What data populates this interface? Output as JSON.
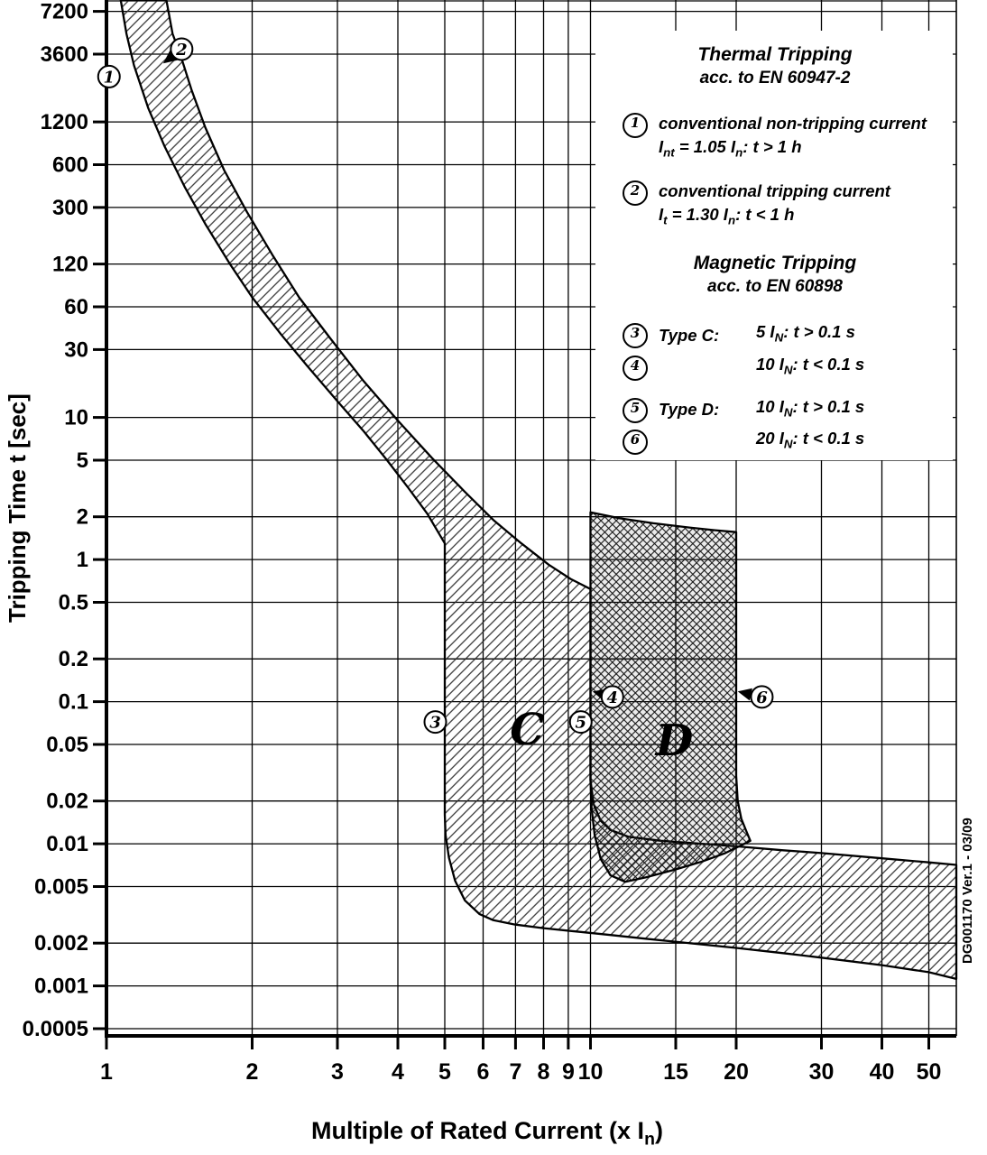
{
  "colors": {
    "ink": "#000000",
    "paper": "#ffffff"
  },
  "axes": {
    "y": {
      "label": "Tripping Time t [sec]",
      "ticks": [
        "7200",
        "3600",
        "1200",
        "600",
        "300",
        "120",
        "60",
        "30",
        "10",
        "5",
        "2",
        "1",
        "0.5",
        "0.2",
        "0.1",
        "0.05",
        "0.02",
        "0.01",
        "0.005",
        "0.002",
        "0.001",
        "0.0005"
      ]
    },
    "x": {
      "label_pre": "Multiple of Rated Current (x I",
      "label_sub": "n",
      "label_post": ")",
      "ticks": [
        "1",
        "2",
        "3",
        "4",
        "5",
        "6",
        "7",
        "8",
        "9",
        "10",
        "15",
        "20",
        "30",
        "40",
        "50"
      ]
    }
  },
  "legend": {
    "thermal": {
      "title": "Thermal Tripping",
      "subtitle": "acc. to EN 60947-2",
      "item1": {
        "num": "1",
        "desc": "conventional non-tripping current",
        "f_pre": "I",
        "f_sub1": "nt",
        "f_mid": " = 1.05 I",
        "f_sub2": "n",
        "f_post": ":  t > 1 h"
      },
      "item2": {
        "num": "2",
        "desc": "conventional tripping current",
        "f_pre": "I",
        "f_sub1": "t",
        "f_mid": " = 1.30 I",
        "f_sub2": "n",
        "f_post": ":  t < 1 h"
      }
    },
    "magnetic": {
      "title": "Magnetic Tripping",
      "subtitle": "acc. to EN 60898",
      "item3": {
        "num": "3",
        "type": "Type C:",
        "f_pre": "5 I",
        "f_sub": "N",
        "f_post": ":  t > 0.1 s"
      },
      "item4": {
        "num": "4",
        "type": "",
        "f_pre": "10 I",
        "f_sub": "N",
        "f_post": ":  t < 0.1 s"
      },
      "item5": {
        "num": "5",
        "type": "Type D:",
        "f_pre": "10 I",
        "f_sub": "N",
        "f_post": ":  t > 0.1 s"
      },
      "item6": {
        "num": "6",
        "type": "",
        "f_pre": "20 I",
        "f_sub": "N",
        "f_post": ":  t < 0.1 s"
      }
    }
  },
  "watermark": "DG001170 Ver.1 - 03/09",
  "chart_data": {
    "type": "area",
    "title": "MCB tripping characteristic, Type C and Type D",
    "xlabel": "Multiple of Rated Current (x In)",
    "ylabel": "Tripping Time t [sec]",
    "x_scale": "log",
    "y_scale": "log",
    "xlim": [
      1,
      57
    ],
    "ylim": [
      0.000445,
      8650
    ],
    "grid": true,
    "x_ticks": [
      1,
      2,
      3,
      4,
      5,
      6,
      7,
      8,
      9,
      10,
      15,
      20,
      30,
      40,
      50
    ],
    "y_ticks": [
      7200,
      3600,
      1200,
      600,
      300,
      120,
      60,
      30,
      10,
      5,
      2,
      1,
      0.5,
      0.2,
      0.1,
      0.05,
      0.02,
      0.01,
      0.005,
      0.002,
      0.001,
      0.0005
    ],
    "thermal_limits": {
      "non_tripping_multiple": 1.05,
      "tripping_multiple": 1.3
    },
    "magnetic_limits": {
      "type_c_multiple_range": [
        5,
        10
      ],
      "type_d_multiple_range": [
        10,
        20
      ],
      "instantaneous_time_band_s": [
        0.002,
        0.01
      ]
    },
    "regions": {
      "type_c": {
        "label": "C",
        "hatch": "diagonal",
        "points": [
          [
            1.07,
            8650
          ],
          [
            1.33,
            8650
          ],
          [
            1.37,
            5000
          ],
          [
            1.42,
            3600
          ],
          [
            1.5,
            2000
          ],
          [
            1.6,
            1100
          ],
          [
            1.75,
            550
          ],
          [
            1.95,
            280
          ],
          [
            2.2,
            140
          ],
          [
            2.5,
            70
          ],
          [
            2.9,
            36
          ],
          [
            3.4,
            18
          ],
          [
            4,
            9.5
          ],
          [
            4.7,
            5.2
          ],
          [
            5.5,
            3
          ],
          [
            6.3,
            1.9
          ],
          [
            7.2,
            1.3
          ],
          [
            8.2,
            0.92
          ],
          [
            9.1,
            0.73
          ],
          [
            10,
            0.62
          ],
          [
            10,
            0.028
          ],
          [
            10.15,
            0.019
          ],
          [
            10.5,
            0.0145
          ],
          [
            11,
            0.0125
          ],
          [
            12,
            0.0112
          ],
          [
            14,
            0.0105
          ],
          [
            17,
            0.01
          ],
          [
            20,
            0.0096
          ],
          [
            25,
            0.009
          ],
          [
            30,
            0.0086
          ],
          [
            40,
            0.0079
          ],
          [
            50,
            0.0074
          ],
          [
            57,
            0.0071
          ],
          [
            57,
            0.00112
          ],
          [
            50,
            0.00125
          ],
          [
            40,
            0.0014
          ],
          [
            30,
            0.00158
          ],
          [
            25,
            0.0017
          ],
          [
            20,
            0.00185
          ],
          [
            16,
            0.002
          ],
          [
            13,
            0.00215
          ],
          [
            11,
            0.00228
          ],
          [
            9.5,
            0.0024
          ],
          [
            8,
            0.00255
          ],
          [
            7,
            0.0027
          ],
          [
            6.3,
            0.0029
          ],
          [
            5.9,
            0.0032
          ],
          [
            5.5,
            0.004
          ],
          [
            5.25,
            0.0055
          ],
          [
            5.1,
            0.008
          ],
          [
            5.02,
            0.0115
          ],
          [
            5,
            0.016
          ],
          [
            5,
            1.3
          ],
          [
            4.6,
            2.1
          ],
          [
            4.2,
            3.2
          ],
          [
            3.8,
            5
          ],
          [
            3.4,
            8
          ],
          [
            3,
            13
          ],
          [
            2.6,
            23
          ],
          [
            2.3,
            38
          ],
          [
            2,
            70
          ],
          [
            1.8,
            120
          ],
          [
            1.6,
            230
          ],
          [
            1.45,
            420
          ],
          [
            1.32,
            800
          ],
          [
            1.22,
            1500
          ],
          [
            1.14,
            3000
          ],
          [
            1.1,
            5000
          ]
        ]
      },
      "type_d": {
        "label": "D",
        "hatch": "cross",
        "points": [
          [
            10,
            2.15
          ],
          [
            11.5,
            1.95
          ],
          [
            13.5,
            1.8
          ],
          [
            16,
            1.68
          ],
          [
            18,
            1.61
          ],
          [
            20,
            1.56
          ],
          [
            20,
            0.03
          ],
          [
            20.15,
            0.02
          ],
          [
            20.5,
            0.015
          ],
          [
            21,
            0.0122
          ],
          [
            21.4,
            0.0105
          ],
          [
            19,
            0.0086
          ],
          [
            17,
            0.0075
          ],
          [
            15,
            0.0066
          ],
          [
            13,
            0.0058
          ],
          [
            11.8,
            0.0054
          ],
          [
            11,
            0.006
          ],
          [
            10.5,
            0.0078
          ],
          [
            10.2,
            0.0115
          ],
          [
            10.05,
            0.018
          ],
          [
            10,
            0.028
          ]
        ]
      }
    },
    "zone_labels": [
      {
        "text": "C",
        "x": 7.4,
        "t": 0.064
      },
      {
        "text": "D",
        "x": 14.9,
        "t": 0.054
      }
    ],
    "callouts": [
      {
        "n": "1",
        "x": 1.012,
        "t": 2500
      },
      {
        "n": "2",
        "x": 1.43,
        "t": 3900,
        "arrow": {
          "x": 1.31,
          "t": 3100
        }
      },
      {
        "n": "3",
        "x": 4.78,
        "t": 0.072
      },
      {
        "n": "4",
        "x": 11.1,
        "t": 0.108,
        "arrow": {
          "x": 10.1,
          "t": 0.118
        }
      },
      {
        "n": "5",
        "x": 9.55,
        "t": 0.072
      },
      {
        "n": "6",
        "x": 22.6,
        "t": 0.108,
        "arrow": {
          "x": 20.15,
          "t": 0.118
        }
      }
    ]
  }
}
